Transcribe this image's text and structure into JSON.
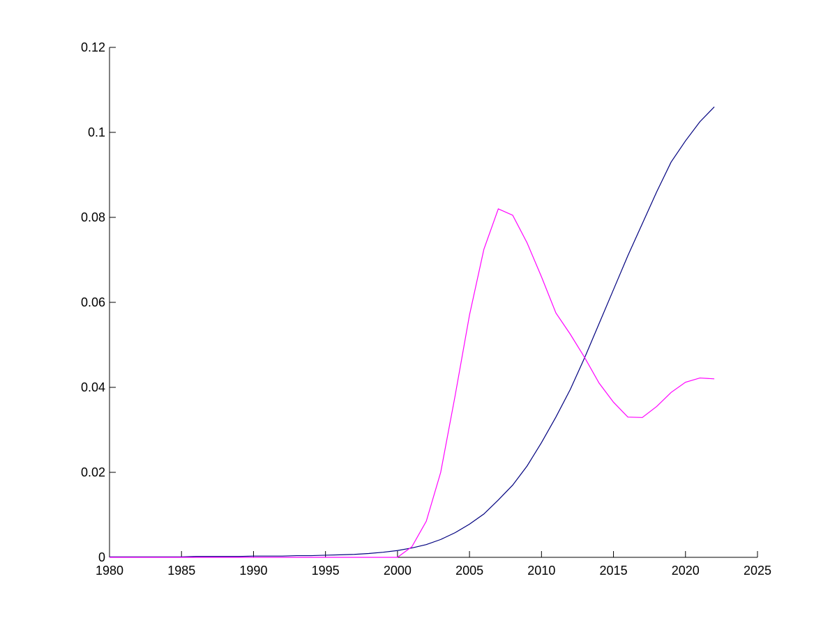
{
  "chart_data": {
    "type": "line",
    "x": [
      1980,
      1981,
      1982,
      1983,
      1984,
      1985,
      1986,
      1987,
      1988,
      1989,
      1990,
      1991,
      1992,
      1993,
      1994,
      1995,
      1996,
      1997,
      1998,
      1999,
      2000,
      2001,
      2002,
      2003,
      2004,
      2005,
      2006,
      2007,
      2008,
      2009,
      2010,
      2011,
      2012,
      2013,
      2014,
      2015,
      2016,
      2017,
      2018,
      2019,
      2020,
      2021,
      2022
    ],
    "series": [
      {
        "color": "#00007f",
        "values": [
          0.0001,
          0.0001,
          0.0001,
          0.0001,
          0.0001,
          0.0001,
          0.0002,
          0.0002,
          0.0002,
          0.0002,
          0.0003,
          0.0003,
          0.0003,
          0.0004,
          0.0004,
          0.0005,
          0.0006,
          0.0007,
          0.0009,
          0.0012,
          0.0016,
          0.0022,
          0.003,
          0.0042,
          0.0058,
          0.0078,
          0.0102,
          0.0135,
          0.017,
          0.0215,
          0.027,
          0.033,
          0.0395,
          0.047,
          0.055,
          0.063,
          0.071,
          0.0785,
          0.086,
          0.093,
          0.098,
          0.1025,
          0.106
        ]
      },
      {
        "color": "#ff00ff",
        "values": [
          0,
          0,
          0,
          0,
          0,
          0,
          0,
          0,
          0,
          0,
          0,
          0,
          0,
          0,
          0,
          0,
          0,
          0,
          0,
          0,
          0,
          0.0025,
          0.0085,
          0.02,
          0.038,
          0.057,
          0.0725,
          0.082,
          0.0805,
          0.074,
          0.066,
          0.0575,
          0.0525,
          0.047,
          0.041,
          0.0365,
          0.033,
          0.0329,
          0.0355,
          0.0388,
          0.0412,
          0.0422,
          0.042
        ]
      }
    ],
    "xlim": [
      1980,
      2025
    ],
    "xticks": [
      1980,
      1985,
      1990,
      1995,
      2000,
      2005,
      2010,
      2015,
      2020,
      2025
    ],
    "ylim": [
      0,
      0.12
    ],
    "yticks": [
      0,
      0.02,
      0.04,
      0.06,
      0.08,
      0.1,
      0.12
    ]
  }
}
